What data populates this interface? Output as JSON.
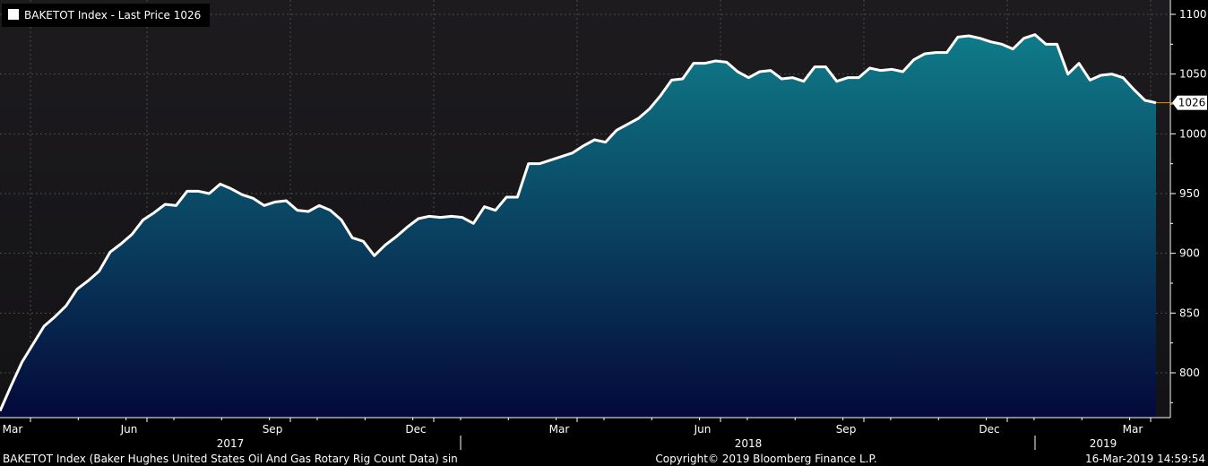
{
  "legend": {
    "label": "BAKETOT Index - Last Price 1026"
  },
  "last_value_label": "1026",
  "footer": {
    "left": "BAKETOT Index (Baker Hughes United States Oil And Gas Rotary Rig Count Data) sin",
    "center": "Copyright© 2019 Bloomberg Finance L.P.",
    "right": "16-Mar-2019 14:59:54"
  },
  "colors": {
    "background": "#000000",
    "plot_top": "#1d1b1e",
    "plot_bottom": "#131215",
    "area_top": "#0f7b88",
    "area_bottom": "#04093a",
    "line": "#ffffff",
    "grid": "#4a4a4a",
    "last_marker": "#f28c00"
  },
  "chart_data": {
    "type": "area",
    "title": "",
    "xlabel": "",
    "ylabel": "",
    "y_ticks": [
      800,
      850,
      900,
      950,
      1000,
      1050,
      1100
    ],
    "ylim": [
      760,
      1103
    ],
    "month_ticks": [
      "Mar",
      "Jun",
      "Sep",
      "Dec",
      "Mar",
      "Jun",
      "Sep",
      "Dec",
      "Mar"
    ],
    "year_labels": [
      "2017",
      "2018",
      "2019"
    ],
    "grid": true,
    "legend_position": "top-left",
    "series": [
      {
        "name": "BAKETOT Index",
        "last": 1026,
        "values": [
          768,
          789,
          809,
          824,
          839,
          847,
          856,
          870,
          877,
          885,
          901,
          908,
          916,
          928,
          934,
          941,
          940,
          952,
          952,
          950,
          958,
          954,
          949,
          946,
          940,
          943,
          944,
          936,
          935,
          940,
          936,
          928,
          913,
          910,
          898,
          907,
          914,
          922,
          929,
          931,
          930,
          931,
          930,
          925,
          939,
          936,
          947,
          947,
          975,
          975,
          978,
          981,
          984,
          990,
          995,
          993,
          1003,
          1008,
          1013,
          1021,
          1032,
          1045,
          1046,
          1059,
          1059,
          1061,
          1060,
          1052,
          1047,
          1052,
          1053,
          1046,
          1047,
          1044,
          1056,
          1056,
          1044,
          1047,
          1047,
          1055,
          1053,
          1054,
          1052,
          1062,
          1067,
          1068,
          1068,
          1081,
          1082,
          1080,
          1077,
          1075,
          1071,
          1080,
          1083,
          1075,
          1075,
          1050,
          1059,
          1045,
          1049,
          1050,
          1047,
          1037,
          1028,
          1026
        ]
      }
    ]
  }
}
